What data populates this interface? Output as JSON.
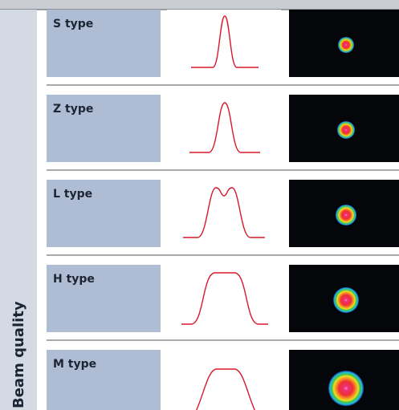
{
  "side_label": "Beam quality",
  "rows": [
    {
      "label": "S type"
    },
    {
      "label": "Z type"
    },
    {
      "label": "L type"
    },
    {
      "label": "H type"
    },
    {
      "label": "M type"
    }
  ]
}
